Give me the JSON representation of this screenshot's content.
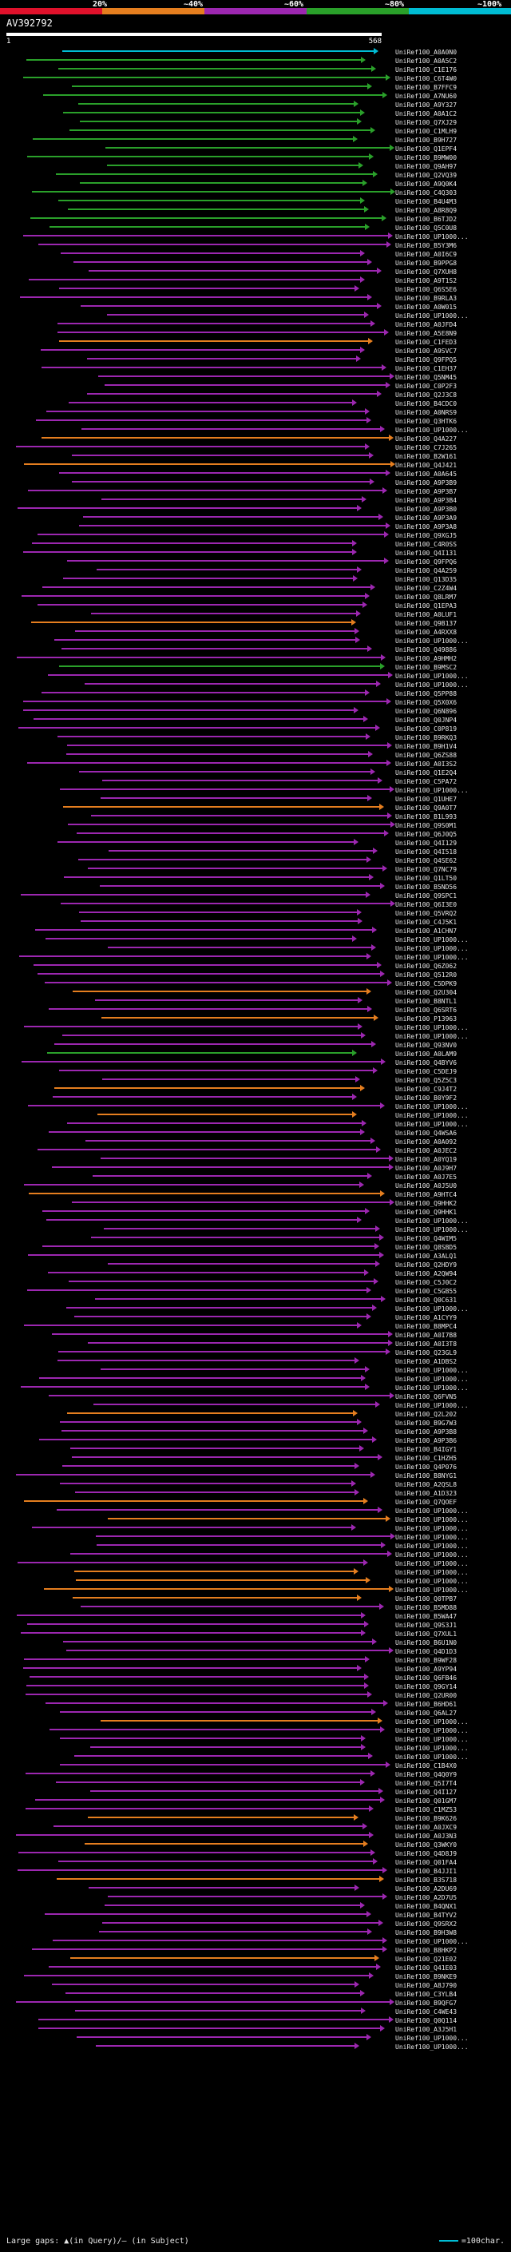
{
  "scale": {
    "labels": [
      "20%",
      "~40%",
      "~60%",
      "~80%",
      "~100%"
    ],
    "colors": [
      "#e0112b",
      "#e57e1f",
      "#9c27b0",
      "#2aa02a",
      "#00bcd4"
    ]
  },
  "query": {
    "title": "AV392792",
    "start": "1",
    "end": "568"
  },
  "hits": [
    {
      "id": "UniRef100_A0A0N0",
      "color": "#00bcd4"
    },
    {
      "id": "UniRef100_A0A5C2",
      "color": "#2aa02a"
    },
    {
      "id": "UniRef100_C1E176",
      "color": "#2aa02a"
    },
    {
      "id": "UniRef100_C6T4W0",
      "color": "#2aa02a"
    },
    {
      "id": "UniRef100_B7FFC9",
      "color": "#2aa02a"
    },
    {
      "id": "UniRef100_A7NU60",
      "color": "#2aa02a"
    },
    {
      "id": "UniRef100_A9Y327",
      "color": "#2aa02a"
    },
    {
      "id": "UniRef100_A0A1C2",
      "color": "#2aa02a"
    },
    {
      "id": "UniRef100_Q7XJ29",
      "color": "#2aa02a"
    },
    {
      "id": "UniRef100_C1MLH9",
      "color": "#2aa02a"
    },
    {
      "id": "UniRef100_B9H727",
      "color": "#2aa02a"
    },
    {
      "id": "UniRef100_Q1EPF4",
      "color": "#2aa02a"
    },
    {
      "id": "UniRef100_B9MW00",
      "color": "#2aa02a"
    },
    {
      "id": "UniRef100_Q9AH97",
      "color": "#2aa02a"
    },
    {
      "id": "UniRef100_Q2VQ39",
      "color": "#2aa02a"
    },
    {
      "id": "UniRef100_A9Q0K4",
      "color": "#2aa02a"
    },
    {
      "id": "UniRef100_C4Q303",
      "color": "#2aa02a"
    },
    {
      "id": "UniRef100_B4U4M3",
      "color": "#2aa02a"
    },
    {
      "id": "UniRef100_A8R8Q9",
      "color": "#2aa02a"
    },
    {
      "id": "UniRef100_B6TJD2",
      "color": "#2aa02a"
    },
    {
      "id": "UniRef100_Q5C0U8",
      "color": "#2aa02a"
    },
    {
      "id": "UniRef100_UP1000...",
      "color": "#9c27b0"
    },
    {
      "id": "UniRef100_B5Y3M6",
      "color": "#9c27b0"
    },
    {
      "id": "UniRef100_A0I6C9",
      "color": "#9c27b0"
    },
    {
      "id": "UniRef100_B9PPG8",
      "color": "#9c27b0"
    },
    {
      "id": "UniRef100_Q7XUH8",
      "color": "#9c27b0"
    },
    {
      "id": "UniRef100_A9T1S2",
      "color": "#9c27b0"
    },
    {
      "id": "UniRef100_Q6S5E6",
      "color": "#9c27b0"
    },
    {
      "id": "UniRef100_B9RLA3",
      "color": "#9c27b0"
    },
    {
      "id": "UniRef100_A0W015",
      "color": "#9c27b0"
    },
    {
      "id": "UniRef100_UP1000...",
      "color": "#9c27b0"
    },
    {
      "id": "UniRef100_A0JFD4",
      "color": "#9c27b0"
    },
    {
      "id": "UniRef100_A5E8N9",
      "color": "#9c27b0"
    },
    {
      "id": "UniRef100_C1FED3",
      "color": "#e57e1f"
    },
    {
      "id": "UniRef100_A9SVC7",
      "color": "#9c27b0"
    },
    {
      "id": "UniRef100_Q9FPQ5",
      "color": "#9c27b0"
    },
    {
      "id": "UniRef100_C1EH37",
      "color": "#9c27b0"
    },
    {
      "id": "UniRef100_Q5NM45",
      "color": "#9c27b0"
    },
    {
      "id": "UniRef100_C0P2F3",
      "color": "#9c27b0"
    },
    {
      "id": "UniRef100_Q2J3C8",
      "color": "#9c27b0"
    },
    {
      "id": "UniRef100_B4CDC0",
      "color": "#9c27b0"
    },
    {
      "id": "UniRef100_A0NRS9",
      "color": "#9c27b0"
    },
    {
      "id": "UniRef100_Q3HTK6",
      "color": "#9c27b0"
    },
    {
      "id": "UniRef100_UP1000...",
      "color": "#9c27b0"
    },
    {
      "id": "UniRef100_Q4A227",
      "color": "#e57e1f"
    },
    {
      "id": "UniRef100_C7J265",
      "color": "#9c27b0"
    },
    {
      "id": "UniRef100_B2W161",
      "color": "#9c27b0"
    },
    {
      "id": "UniRef100_Q4J421",
      "color": "#e57e1f"
    },
    {
      "id": "UniRef100_A0A645",
      "color": "#9c27b0"
    },
    {
      "id": "UniRef100_A9P3B9",
      "color": "#9c27b0"
    },
    {
      "id": "UniRef100_A9P3B7",
      "color": "#9c27b0"
    },
    {
      "id": "UniRef100_A9P3B4",
      "color": "#9c27b0"
    },
    {
      "id": "UniRef100_A9P3B0",
      "color": "#9c27b0"
    },
    {
      "id": "UniRef100_A9P3A9",
      "color": "#9c27b0"
    },
    {
      "id": "UniRef100_A9P3A8",
      "color": "#9c27b0"
    },
    {
      "id": "UniRef100_Q9XGJ5",
      "color": "#9c27b0"
    },
    {
      "id": "UniRef100_C4R0SS",
      "color": "#9c27b0"
    },
    {
      "id": "UniRef100_Q4I131",
      "color": "#9c27b0"
    },
    {
      "id": "UniRef100_Q9FPQ6",
      "color": "#9c27b0"
    },
    {
      "id": "UniRef100_Q4A259",
      "color": "#9c27b0"
    },
    {
      "id": "UniRef100_Q13D35",
      "color": "#9c27b0"
    },
    {
      "id": "UniRef100_C2Z4W4",
      "color": "#9c27b0"
    },
    {
      "id": "UniRef100_Q8LRM7",
      "color": "#9c27b0"
    },
    {
      "id": "UniRef100_Q1EPA3",
      "color": "#9c27b0"
    },
    {
      "id": "UniRef100_A0LUF1",
      "color": "#9c27b0"
    },
    {
      "id": "UniRef100_Q9B137",
      "color": "#e57e1f"
    },
    {
      "id": "UniRef100_A4RXX8",
      "color": "#9c27b0"
    },
    {
      "id": "UniRef100_UP1000...",
      "color": "#9c27b0"
    },
    {
      "id": "UniRef100_Q49886",
      "color": "#9c27b0"
    },
    {
      "id": "UniRef100_A9HMH2",
      "color": "#9c27b0"
    },
    {
      "id": "UniRef100_B9MSC2",
      "color": "#2aa02a"
    },
    {
      "id": "UniRef100_UP1000...",
      "color": "#9c27b0"
    },
    {
      "id": "UniRef100_UP1000...",
      "color": "#9c27b0"
    },
    {
      "id": "UniRef100_Q5PP88",
      "color": "#9c27b0"
    },
    {
      "id": "UniRef100_Q5X0X6",
      "color": "#9c27b0"
    },
    {
      "id": "UniRef100_Q6N896",
      "color": "#9c27b0"
    },
    {
      "id": "UniRef100_Q0JNP4",
      "color": "#9c27b0"
    },
    {
      "id": "UniRef100_C0P819",
      "color": "#9c27b0"
    },
    {
      "id": "UniRef100_B9RKQ3",
      "color": "#9c27b0"
    },
    {
      "id": "UniRef100_B9H1V4",
      "color": "#9c27b0"
    },
    {
      "id": "UniRef100_Q6ZS88",
      "color": "#9c27b0"
    },
    {
      "id": "UniRef100_A0I3S2",
      "color": "#9c27b0"
    },
    {
      "id": "UniRef100_Q1E2Q4",
      "color": "#9c27b0"
    },
    {
      "id": "UniRef100_C5PA72",
      "color": "#9c27b0"
    },
    {
      "id": "UniRef100_UP1000...",
      "color": "#9c27b0"
    },
    {
      "id": "UniRef100_Q1UHE7",
      "color": "#9c27b0"
    },
    {
      "id": "UniRef100_Q9A0T7",
      "color": "#e57e1f"
    },
    {
      "id": "UniRef100_B1L993",
      "color": "#9c27b0"
    },
    {
      "id": "UniRef100_Q9S0M1",
      "color": "#9c27b0"
    },
    {
      "id": "UniRef100_Q6J0Q5",
      "color": "#9c27b0"
    },
    {
      "id": "UniRef100_Q4I129",
      "color": "#9c27b0"
    },
    {
      "id": "UniRef100_Q4I518",
      "color": "#9c27b0"
    },
    {
      "id": "UniRef100_Q4SE62",
      "color": "#9c27b0"
    },
    {
      "id": "UniRef100_Q7NC79",
      "color": "#9c27b0"
    },
    {
      "id": "UniRef100_Q1LT50",
      "color": "#9c27b0"
    },
    {
      "id": "UniRef100_B5ND56",
      "color": "#9c27b0"
    },
    {
      "id": "UniRef100_Q9SPC1",
      "color": "#9c27b0"
    },
    {
      "id": "UniRef100_Q6I3E0",
      "color": "#9c27b0"
    },
    {
      "id": "UniRef100_Q5VRQ2",
      "color": "#9c27b0"
    },
    {
      "id": "UniRef100_C4J5K1",
      "color": "#9c27b0"
    },
    {
      "id": "UniRef100_A1CHN7",
      "color": "#9c27b0"
    },
    {
      "id": "UniRef100_UP1000...",
      "color": "#9c27b0"
    },
    {
      "id": "UniRef100_UP1000...",
      "color": "#9c27b0"
    },
    {
      "id": "UniRef100_UP1000...",
      "color": "#9c27b0"
    },
    {
      "id": "UniRef100_Q6Z062",
      "color": "#9c27b0"
    },
    {
      "id": "UniRef100_Q512R0",
      "color": "#9c27b0"
    },
    {
      "id": "UniRef100_C5DPK9",
      "color": "#9c27b0"
    },
    {
      "id": "UniRef100_Q2U304",
      "color": "#e57e1f"
    },
    {
      "id": "UniRef100_B8NTL1",
      "color": "#9c27b0"
    },
    {
      "id": "UniRef100_Q6SRT6",
      "color": "#9c27b0"
    },
    {
      "id": "UniRef100_P13963",
      "color": "#e57e1f"
    },
    {
      "id": "UniRef100_UP1000...",
      "color": "#9c27b0"
    },
    {
      "id": "UniRef100_UP1000...",
      "color": "#9c27b0"
    },
    {
      "id": "UniRef100_Q93NV0",
      "color": "#9c27b0"
    },
    {
      "id": "UniRef100_A0LAM9",
      "color": "#2aa02a"
    },
    {
      "id": "UniRef100_Q4BYV6",
      "color": "#9c27b0"
    },
    {
      "id": "UniRef100_C5DEJ9",
      "color": "#9c27b0"
    },
    {
      "id": "UniRef100_Q5Z5C3",
      "color": "#9c27b0"
    },
    {
      "id": "UniRef100_C9J4T2",
      "color": "#e57e1f"
    },
    {
      "id": "UniRef100_B0Y9F2",
      "color": "#9c27b0"
    },
    {
      "id": "UniRef100_UP1000...",
      "color": "#9c27b0"
    },
    {
      "id": "UniRef100_UP1000...",
      "color": "#e57e1f"
    },
    {
      "id": "UniRef100_UP1000...",
      "color": "#9c27b0"
    },
    {
      "id": "UniRef100_Q4WSA6",
      "color": "#9c27b0"
    },
    {
      "id": "UniRef100_A0A092",
      "color": "#9c27b0"
    },
    {
      "id": "UniRef100_A0JEC2",
      "color": "#9c27b0"
    },
    {
      "id": "UniRef100_A0YQ19",
      "color": "#9c27b0"
    },
    {
      "id": "UniRef100_A0J9H7",
      "color": "#9c27b0"
    },
    {
      "id": "UniRef100_A0J7E5",
      "color": "#9c27b0"
    },
    {
      "id": "UniRef100_A0J5U0",
      "color": "#9c27b0"
    },
    {
      "id": "UniRef100_A9HTC4",
      "color": "#e57e1f"
    },
    {
      "id": "UniRef100_Q9HHK2",
      "color": "#9c27b0"
    },
    {
      "id": "UniRef100_Q9HHK1",
      "color": "#9c27b0"
    },
    {
      "id": "UniRef100_UP1000...",
      "color": "#9c27b0"
    },
    {
      "id": "UniRef100_UP1000...",
      "color": "#9c27b0"
    },
    {
      "id": "UniRef100_Q4WIM5",
      "color": "#9c27b0"
    },
    {
      "id": "UniRef100_Q8SBD5",
      "color": "#9c27b0"
    },
    {
      "id": "UniRef100_A3ALQ1",
      "color": "#9c27b0"
    },
    {
      "id": "UniRef100_Q2HDY9",
      "color": "#9c27b0"
    },
    {
      "id": "UniRef100_A2QW94",
      "color": "#9c27b0"
    },
    {
      "id": "UniRef100_C5J0C2",
      "color": "#9c27b0"
    },
    {
      "id": "UniRef100_C5GB55",
      "color": "#9c27b0"
    },
    {
      "id": "UniRef100_Q0C631",
      "color": "#9c27b0"
    },
    {
      "id": "UniRef100_UP1000...",
      "color": "#9c27b0"
    },
    {
      "id": "UniRef100_A1CYY9",
      "color": "#9c27b0"
    },
    {
      "id": "UniRef100_B8MPC4",
      "color": "#9c27b0"
    },
    {
      "id": "UniRef100_A0I7B8",
      "color": "#9c27b0"
    },
    {
      "id": "UniRef100_A0I3T8",
      "color": "#9c27b0"
    },
    {
      "id": "UniRef100_Q23GL9",
      "color": "#9c27b0"
    },
    {
      "id": "UniRef100_A1DBS2",
      "color": "#9c27b0"
    },
    {
      "id": "UniRef100_UP1000...",
      "color": "#9c27b0"
    },
    {
      "id": "UniRef100_UP1000...",
      "color": "#9c27b0"
    },
    {
      "id": "UniRef100_UP1000...",
      "color": "#9c27b0"
    },
    {
      "id": "UniRef100_Q6FVN5",
      "color": "#9c27b0"
    },
    {
      "id": "UniRef100_UP1000...",
      "color": "#9c27b0"
    },
    {
      "id": "UniRef100_Q2L202",
      "color": "#e57e1f"
    },
    {
      "id": "UniRef100_B9G7W3",
      "color": "#9c27b0"
    },
    {
      "id": "UniRef100_A9P3B8",
      "color": "#9c27b0"
    },
    {
      "id": "UniRef100_A9P3B6",
      "color": "#9c27b0"
    },
    {
      "id": "UniRef100_B4IGY1",
      "color": "#9c27b0"
    },
    {
      "id": "UniRef100_C1HZH5",
      "color": "#9c27b0"
    },
    {
      "id": "UniRef100_Q4P076",
      "color": "#9c27b0"
    },
    {
      "id": "UniRef100_B8NYG1",
      "color": "#9c27b0"
    },
    {
      "id": "UniRef100_A2QSL8",
      "color": "#9c27b0"
    },
    {
      "id": "UniRef100_A1D323",
      "color": "#9c27b0"
    },
    {
      "id": "UniRef100_Q7QOEF",
      "color": "#e57e1f"
    },
    {
      "id": "UniRef100_UP1000...",
      "color": "#9c27b0"
    },
    {
      "id": "UniRef100_UP1000...",
      "color": "#e57e1f"
    },
    {
      "id": "UniRef100_UP1000...",
      "color": "#9c27b0"
    },
    {
      "id": "UniRef100_UP1000...",
      "color": "#9c27b0"
    },
    {
      "id": "UniRef100_UP1000...",
      "color": "#9c27b0"
    },
    {
      "id": "UniRef100_UP1000...",
      "color": "#9c27b0"
    },
    {
      "id": "UniRef100_UP1000...",
      "color": "#9c27b0"
    },
    {
      "id": "UniRef100_UP1000...",
      "color": "#e57e1f"
    },
    {
      "id": "UniRef100_UP1000...",
      "color": "#e57e1f"
    },
    {
      "id": "UniRef100_UP1000...",
      "color": "#e57e1f"
    },
    {
      "id": "UniRef100_Q0TPB7",
      "color": "#e57e1f"
    },
    {
      "id": "UniRef100_B5MD88",
      "color": "#9c27b0"
    },
    {
      "id": "UniRef100_B5WA47",
      "color": "#9c27b0"
    },
    {
      "id": "UniRef100_Q9S3J1",
      "color": "#9c27b0"
    },
    {
      "id": "UniRef100_Q7XUL1",
      "color": "#9c27b0"
    },
    {
      "id": "UniRef100_B6U1N0",
      "color": "#9c27b0"
    },
    {
      "id": "UniRef100_Q4D1D3",
      "color": "#9c27b0"
    },
    {
      "id": "UniRef100_B9WF28",
      "color": "#9c27b0"
    },
    {
      "id": "UniRef100_A9YP94",
      "color": "#9c27b0"
    },
    {
      "id": "UniRef100_Q6FB46",
      "color": "#9c27b0"
    },
    {
      "id": "UniRef100_Q9GY14",
      "color": "#9c27b0"
    },
    {
      "id": "UniRef100_Q2UR00",
      "color": "#9c27b0"
    },
    {
      "id": "UniRef100_B6HD61",
      "color": "#9c27b0"
    },
    {
      "id": "UniRef100_Q6AL27",
      "color": "#9c27b0"
    },
    {
      "id": "UniRef100_UP1000...",
      "color": "#e57e1f"
    },
    {
      "id": "UniRef100_UP1000...",
      "color": "#9c27b0"
    },
    {
      "id": "UniRef100_UP1000...",
      "color": "#9c27b0"
    },
    {
      "id": "UniRef100_UP1000...",
      "color": "#9c27b0"
    },
    {
      "id": "UniRef100_UP1000...",
      "color": "#9c27b0"
    },
    {
      "id": "UniRef100_C1B4X0",
      "color": "#9c27b0"
    },
    {
      "id": "UniRef100_Q4Q0Y9",
      "color": "#9c27b0"
    },
    {
      "id": "UniRef100_Q5I7T4",
      "color": "#9c27b0"
    },
    {
      "id": "UniRef100_Q4I127",
      "color": "#9c27b0"
    },
    {
      "id": "UniRef100_Q01GM7",
      "color": "#9c27b0"
    },
    {
      "id": "UniRef100_C1MZ53",
      "color": "#9c27b0"
    },
    {
      "id": "UniRef100_B9K626",
      "color": "#e57e1f"
    },
    {
      "id": "UniRef100_A0JXC9",
      "color": "#9c27b0"
    },
    {
      "id": "UniRef100_A0J3N3",
      "color": "#9c27b0"
    },
    {
      "id": "UniRef100_Q3WKY0",
      "color": "#e57e1f"
    },
    {
      "id": "UniRef100_Q4D8J9",
      "color": "#9c27b0"
    },
    {
      "id": "UniRef100_Q01FA4",
      "color": "#9c27b0"
    },
    {
      "id": "UniRef100_B4JJI1",
      "color": "#9c27b0"
    },
    {
      "id": "UniRef100_B3S718",
      "color": "#e57e1f"
    },
    {
      "id": "UniRef100_A2DU69",
      "color": "#9c27b0"
    },
    {
      "id": "UniRef100_A2D7U5",
      "color": "#9c27b0"
    },
    {
      "id": "UniRef100_B4QNX1",
      "color": "#9c27b0"
    },
    {
      "id": "UniRef100_B4TYV2",
      "color": "#9c27b0"
    },
    {
      "id": "UniRef100_Q9SRX2",
      "color": "#9c27b0"
    },
    {
      "id": "UniRef100_B9H3W8",
      "color": "#9c27b0"
    },
    {
      "id": "UniRef100_UP1000...",
      "color": "#9c27b0"
    },
    {
      "id": "UniRef100_B8HKP2",
      "color": "#9c27b0"
    },
    {
      "id": "UniRef100_Q21E02",
      "color": "#e57e1f"
    },
    {
      "id": "UniRef100_Q41E03",
      "color": "#9c27b0"
    },
    {
      "id": "UniRef100_B9NKE9",
      "color": "#9c27b0"
    },
    {
      "id": "UniRef100_A8J790",
      "color": "#9c27b0"
    },
    {
      "id": "UniRef100_C3YLB4",
      "color": "#9c27b0"
    },
    {
      "id": "UniRef100_B9QFG7",
      "color": "#9c27b0"
    },
    {
      "id": "UniRef100_C4WE43",
      "color": "#9c27b0"
    },
    {
      "id": "UniRef100_Q0Q114",
      "color": "#9c27b0"
    },
    {
      "id": "UniRef100_A3J5H1",
      "color": "#9c27b0"
    },
    {
      "id": "UniRef100_UP1000...",
      "color": "#9c27b0"
    },
    {
      "id": "UniRef100_UP1000...",
      "color": "#9c27b0"
    }
  ],
  "footer": {
    "gaps_text": "Large gaps: ▲(in Query)/– (in Subject)",
    "legend_text": "=100char."
  }
}
